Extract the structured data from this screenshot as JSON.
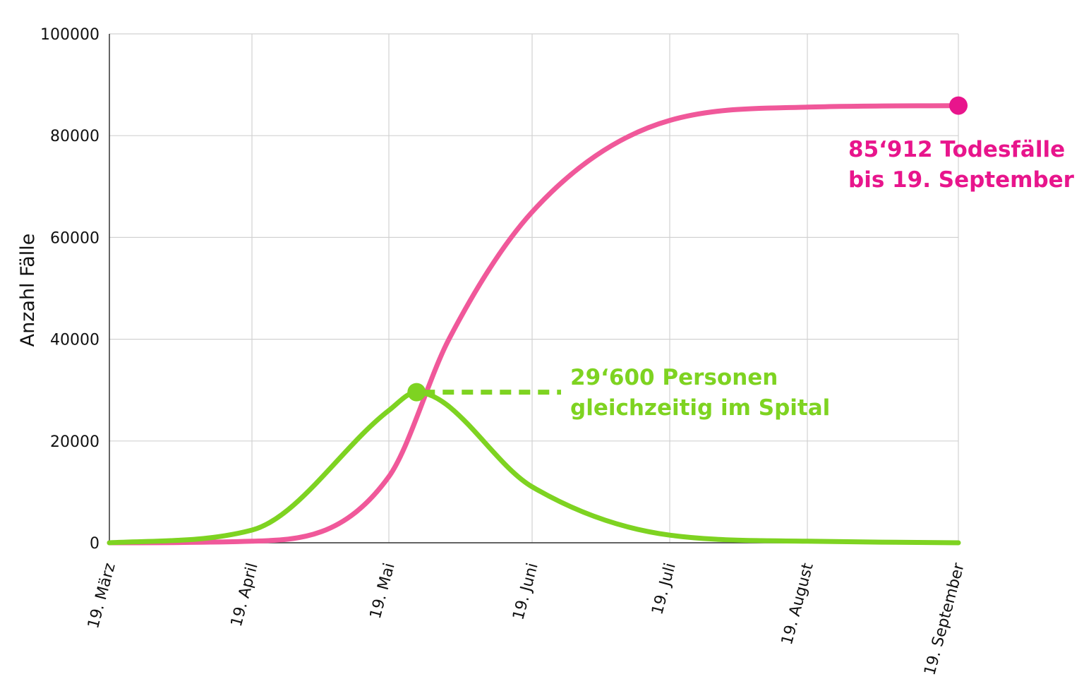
{
  "chart_data": {
    "type": "line",
    "title": "",
    "xlabel": "",
    "ylabel": "Anzahl Fälle",
    "x_ticks": [
      "19. März",
      "19. April",
      "19. Mai",
      "19. Juni",
      "19. Juli",
      "19. August",
      "19. September"
    ],
    "y_ticks": [
      "0",
      "20000",
      "40000",
      "60000",
      "80000",
      "100000"
    ],
    "ylim": [
      0,
      100000
    ],
    "grid": true,
    "series": [
      {
        "color": "#f0589a",
        "x": [
          "19. März",
          "19. April",
          "19. Mai",
          "1. Juni",
          "19. Juni",
          "19. Juli",
          "19. August",
          "19. September"
        ],
        "values": [
          0,
          300,
          13000,
          40000,
          65000,
          83000,
          85600,
          85912
        ]
      },
      {
        "color": "#7ed321",
        "x": [
          "19. März",
          "19. April",
          "19. Mai",
          "25. Mai",
          "19. Juni",
          "19. Juli",
          "19. August",
          "19. September"
        ],
        "values": [
          0,
          2500,
          26000,
          29600,
          11000,
          1500,
          300,
          0
        ]
      }
    ],
    "annotations": [
      {
        "lines": [
          "85‘912 Todesfälle",
          "bis 19. September"
        ],
        "color": "#e8158c",
        "x": "19. September",
        "y": 85912
      },
      {
        "lines": [
          "29‘600 Personen",
          "gleichzeitig im Spital"
        ],
        "color": "#7ed321",
        "x": "25. Mai",
        "y": 29600
      }
    ]
  }
}
